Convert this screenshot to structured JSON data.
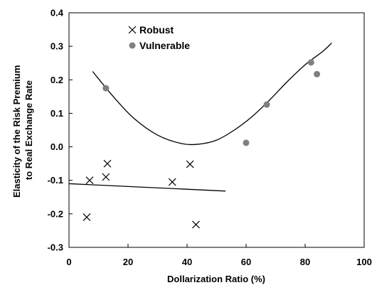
{
  "chart_data": {
    "type": "scatter",
    "xlabel": "Dollarization Ratio (%)",
    "ylabel_lines": [
      "Elasticity of the Risk Premium",
      "to Real Exchange Rate"
    ],
    "xlim": [
      0,
      100
    ],
    "ylim": [
      -0.3,
      0.4
    ],
    "x_ticks": [
      "0",
      "20",
      "40",
      "60",
      "80",
      "100"
    ],
    "y_ticks": [
      "0.4",
      "0.3",
      "0.2",
      "0.1",
      "0.0",
      "-0.1",
      "-0.2",
      "-0.3"
    ],
    "grid": false,
    "legend_position": "top-left",
    "series": [
      {
        "name": "Robust",
        "marker": "x",
        "color": "#000000",
        "points": [
          [
            6,
            -0.21
          ],
          [
            7,
            -0.1
          ],
          [
            12.5,
            -0.09
          ],
          [
            13,
            -0.05
          ],
          [
            35,
            -0.105
          ],
          [
            41,
            -0.052
          ],
          [
            43,
            -0.232
          ]
        ]
      },
      {
        "name": "Vulnerable",
        "marker": "circle",
        "color": "#808080",
        "points": [
          [
            12.5,
            0.175
          ],
          [
            60,
            0.012
          ],
          [
            67,
            0.126
          ],
          [
            82,
            0.252
          ],
          [
            84,
            0.217
          ]
        ]
      }
    ],
    "fit_lines": [
      {
        "series": "Robust",
        "type": "linear",
        "points": [
          [
            0,
            -0.11
          ],
          [
            53,
            -0.132
          ]
        ]
      },
      {
        "series": "Vulnerable",
        "type": "quadratic",
        "points": [
          [
            8,
            0.225
          ],
          [
            15,
            0.15
          ],
          [
            22,
            0.085
          ],
          [
            30,
            0.035
          ],
          [
            38,
            0.01
          ],
          [
            44,
            0.008
          ],
          [
            50,
            0.02
          ],
          [
            56,
            0.05
          ],
          [
            62,
            0.09
          ],
          [
            68,
            0.14
          ],
          [
            74,
            0.195
          ],
          [
            80,
            0.245
          ],
          [
            86,
            0.285
          ],
          [
            89,
            0.31
          ]
        ]
      }
    ]
  }
}
